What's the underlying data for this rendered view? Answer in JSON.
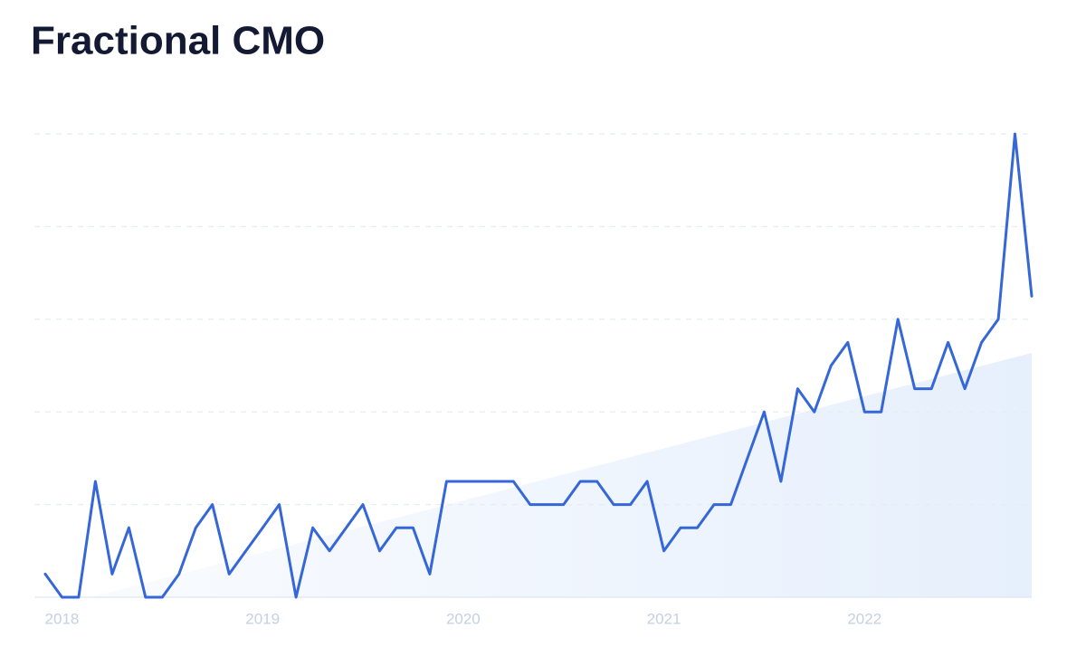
{
  "chart_data": {
    "type": "line",
    "title": "Fractional CMO",
    "categories": [
      null,
      "2018",
      null,
      null,
      null,
      null,
      null,
      null,
      null,
      null,
      null,
      null,
      null,
      "2019",
      null,
      null,
      null,
      null,
      null,
      null,
      null,
      null,
      null,
      null,
      null,
      "2020",
      null,
      null,
      null,
      null,
      null,
      null,
      null,
      null,
      null,
      null,
      null,
      "2021",
      null,
      null,
      null,
      null,
      null,
      null,
      null,
      null,
      null,
      null,
      null,
      "2022",
      null,
      null,
      null,
      null,
      null,
      null,
      null,
      null,
      null,
      null
    ],
    "values": [
      5,
      0,
      0,
      25,
      5,
      15,
      0,
      0,
      5,
      15,
      20,
      5,
      10,
      15,
      20,
      0,
      15,
      10,
      15,
      20,
      10,
      15,
      15,
      5,
      25,
      25,
      25,
      25,
      25,
      20,
      20,
      20,
      25,
      25,
      20,
      20,
      25,
      10,
      15,
      15,
      20,
      20,
      30,
      40,
      25,
      45,
      40,
      50,
      55,
      40,
      40,
      60,
      45,
      45,
      55,
      45,
      55,
      60,
      100,
      65
    ],
    "color": "#3567d8",
    "ylim": [
      0,
      100
    ],
    "yticks": [
      0,
      20,
      40,
      60,
      80,
      100
    ],
    "grid": true
  }
}
